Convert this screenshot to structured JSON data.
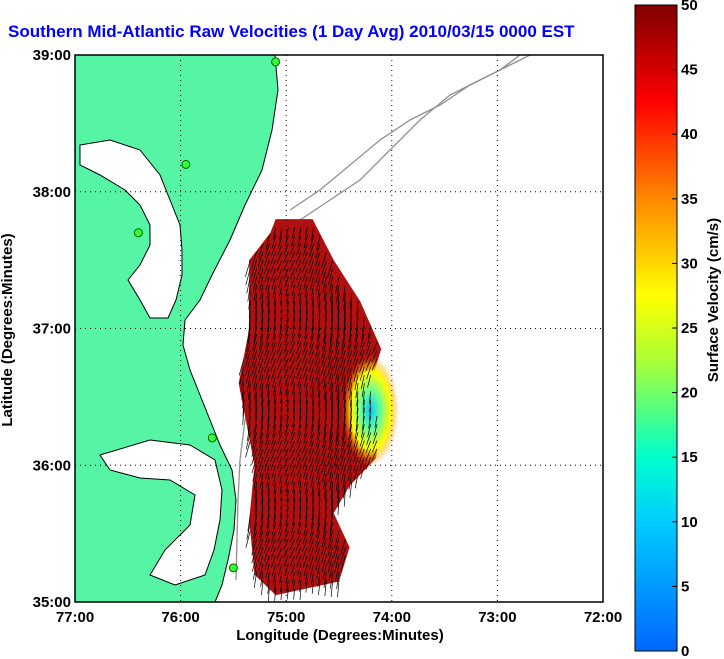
{
  "title": "Southern Mid-Atlantic Raw Velocities (1 Day Avg) 2010/03/15 0000 EST",
  "chart_data": {
    "type": "heatmap",
    "title": "Southern Mid-Atlantic Raw Velocities (1 Day Avg) 2010/03/15 0000 EST",
    "xlabel": "Longitude (Degrees:Minutes)",
    "ylabel": "Latitude (Degrees:Minutes)",
    "colorbar_label": "Surface Velocity (cm/s)",
    "x_ticks": [
      {
        "value": -77,
        "label": "77:00"
      },
      {
        "value": -76,
        "label": "76:00"
      },
      {
        "value": -75,
        "label": "75:00"
      },
      {
        "value": -74,
        "label": "74:00"
      },
      {
        "value": -73,
        "label": "73:00"
      },
      {
        "value": -72,
        "label": "72:00"
      }
    ],
    "y_ticks": [
      {
        "value": 35,
        "label": "35:00"
      },
      {
        "value": 36,
        "label": "36:00"
      },
      {
        "value": 37,
        "label": "37:00"
      },
      {
        "value": 38,
        "label": "38:00"
      },
      {
        "value": 39,
        "label": "39:00"
      }
    ],
    "xlim": [
      -77,
      -72
    ],
    "ylim": [
      35,
      39
    ],
    "colorbar_ticks": [
      0,
      5,
      10,
      15,
      20,
      25,
      30,
      35,
      40,
      45,
      50
    ],
    "colorbar_range": [
      0,
      50
    ],
    "colormap": "jet",
    "grid": true,
    "land_color": "#55f5a5",
    "coverage_polygon": [
      [
        -75.1,
        37.8
      ],
      [
        -74.75,
        37.8
      ],
      [
        -74.55,
        37.5
      ],
      [
        -74.3,
        37.2
      ],
      [
        -74.1,
        36.85
      ],
      [
        -74.2,
        36.6
      ],
      [
        -74.1,
        36.3
      ],
      [
        -74.15,
        36.05
      ],
      [
        -74.4,
        35.85
      ],
      [
        -74.55,
        35.65
      ],
      [
        -74.4,
        35.4
      ],
      [
        -74.5,
        35.15
      ],
      [
        -75.1,
        35.05
      ],
      [
        -75.3,
        35.2
      ],
      [
        -75.35,
        35.6
      ],
      [
        -75.3,
        36.0
      ],
      [
        -75.45,
        36.6
      ],
      [
        -75.35,
        37.0
      ],
      [
        -75.35,
        37.5
      ],
      [
        -75.15,
        37.7
      ]
    ],
    "low_velocity_eddy_center": [
      -74.2,
      36.4
    ],
    "stations": [
      {
        "lon": -75.1,
        "lat": 38.95
      },
      {
        "lon": -75.95,
        "lat": 38.2
      },
      {
        "lon": -76.4,
        "lat": 37.7
      },
      {
        "lon": -75.7,
        "lat": 36.2
      },
      {
        "lon": -75.5,
        "lat": 35.25
      }
    ]
  }
}
